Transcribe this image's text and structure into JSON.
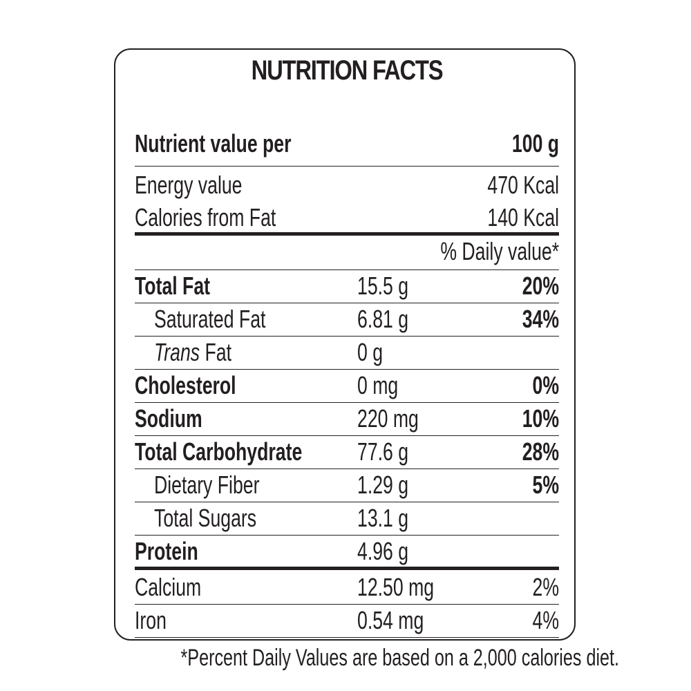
{
  "title": "NUTRITION FACTS",
  "serving": {
    "label": "Nutrient value per",
    "value": "100 g"
  },
  "energy": {
    "energy_label": "Energy value",
    "energy_value": "470 Kcal",
    "fat_cal_label": "Calories from Fat",
    "fat_cal_value": "140 Kcal"
  },
  "dv_header": "% Daily value*",
  "nutrients": [
    {
      "name": "Total Fat",
      "amount": "15.5 g",
      "dv": "20%"
    },
    {
      "name": "Saturated Fat",
      "amount": "6.81 g",
      "dv": "34%"
    },
    {
      "name_italic": "Trans",
      "name": " Fat",
      "amount": "0 g",
      "dv": ""
    },
    {
      "name": "Cholesterol",
      "amount": "0 mg",
      "dv": "0%"
    },
    {
      "name": "Sodium",
      "amount": "220 mg",
      "dv": "10%"
    },
    {
      "name": "Total Carbohydrate",
      "amount": "77.6 g",
      "dv": "28%"
    },
    {
      "name": "Dietary Fiber",
      "amount": "1.29 g",
      "dv": "5%"
    },
    {
      "name": "Total Sugars",
      "amount": "13.1 g",
      "dv": ""
    },
    {
      "name": "Protein",
      "amount": "4.96 g",
      "dv": ""
    },
    {
      "name": "Calcium",
      "amount": "12.50 mg",
      "dv": "2%"
    },
    {
      "name": "Iron",
      "amount": "0.54 mg",
      "dv": "4%"
    }
  ],
  "footnote": "*Percent Daily Values are based on a 2,000 calories diet."
}
